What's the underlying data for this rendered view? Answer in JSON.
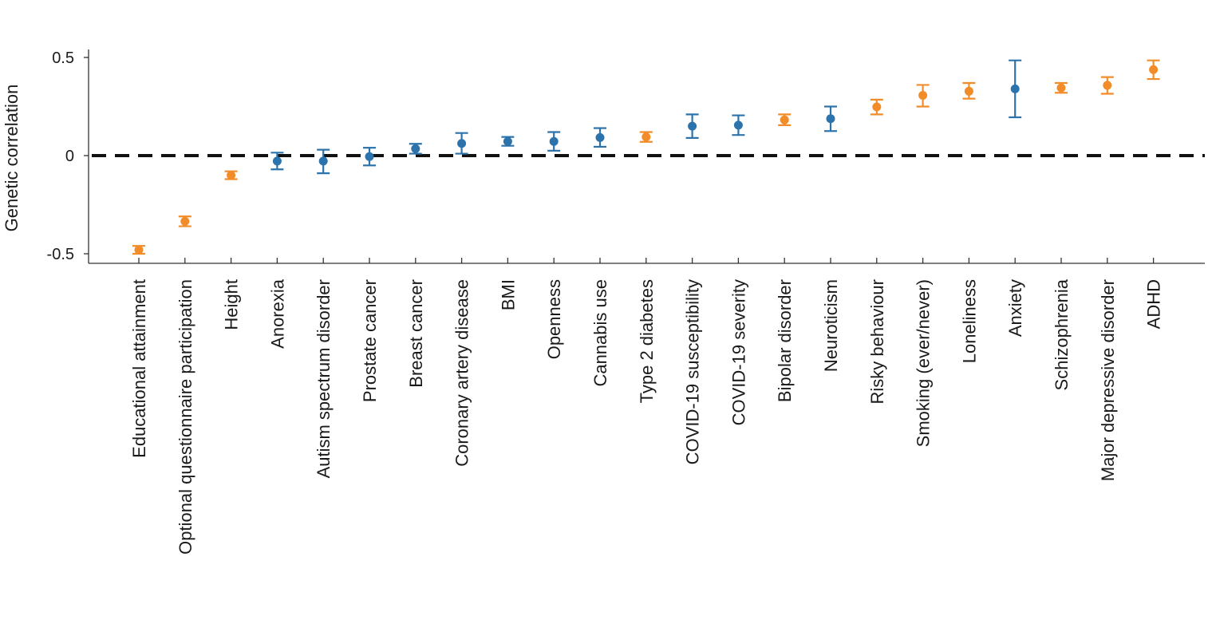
{
  "chart_data": {
    "type": "scatter",
    "ylabel": "Genetic correlation",
    "xlabel": "",
    "ylim": [
      -0.55,
      0.5
    ],
    "yticks": [
      -0.5,
      0,
      0.5
    ],
    "ytick_labels": [
      "-0.5",
      "0",
      "0.5"
    ],
    "reference_line": 0,
    "grid": false,
    "colors": {
      "orange": "#f28c28",
      "blue": "#2c73ab",
      "zero_line": "#111111",
      "axis": "#333333"
    },
    "categories": [
      "Educational attainment",
      "Optional questionnaire participation",
      "Height",
      "Anorexia",
      "Autism spectrum disorder",
      "Prostate cancer",
      "Breast cancer",
      "Coronary artery disease",
      "BMI",
      "Openness",
      "Cannabis use",
      "Type 2 diabetes",
      "COVID-19 susceptibility",
      "COVID-19 severity",
      "Bipolar disorder",
      "Neuroticism",
      "Risky behaviour",
      "Smoking (ever/never)",
      "Loneliness",
      "Anxiety",
      "Schizophrenia",
      "Major depressive disorder",
      "ADHD"
    ],
    "points": [
      {
        "value": -0.48,
        "lower": -0.5,
        "upper": -0.46,
        "color": "orange"
      },
      {
        "value": -0.335,
        "lower": -0.36,
        "upper": -0.31,
        "color": "orange"
      },
      {
        "value": -0.1,
        "lower": -0.12,
        "upper": -0.08,
        "color": "orange"
      },
      {
        "value": -0.028,
        "lower": -0.07,
        "upper": 0.015,
        "color": "blue"
      },
      {
        "value": -0.028,
        "lower": -0.09,
        "upper": 0.03,
        "color": "blue"
      },
      {
        "value": -0.005,
        "lower": -0.05,
        "upper": 0.04,
        "color": "blue"
      },
      {
        "value": 0.035,
        "lower": 0.01,
        "upper": 0.06,
        "color": "blue"
      },
      {
        "value": 0.062,
        "lower": 0.01,
        "upper": 0.115,
        "color": "blue"
      },
      {
        "value": 0.072,
        "lower": 0.05,
        "upper": 0.095,
        "color": "blue"
      },
      {
        "value": 0.072,
        "lower": 0.025,
        "upper": 0.12,
        "color": "blue"
      },
      {
        "value": 0.092,
        "lower": 0.045,
        "upper": 0.14,
        "color": "blue"
      },
      {
        "value": 0.095,
        "lower": 0.07,
        "upper": 0.12,
        "color": "orange"
      },
      {
        "value": 0.15,
        "lower": 0.09,
        "upper": 0.21,
        "color": "blue"
      },
      {
        "value": 0.155,
        "lower": 0.105,
        "upper": 0.205,
        "color": "blue"
      },
      {
        "value": 0.182,
        "lower": 0.155,
        "upper": 0.21,
        "color": "orange"
      },
      {
        "value": 0.188,
        "lower": 0.125,
        "upper": 0.25,
        "color": "blue"
      },
      {
        "value": 0.248,
        "lower": 0.21,
        "upper": 0.285,
        "color": "orange"
      },
      {
        "value": 0.307,
        "lower": 0.25,
        "upper": 0.36,
        "color": "orange"
      },
      {
        "value": 0.328,
        "lower": 0.29,
        "upper": 0.37,
        "color": "orange"
      },
      {
        "value": 0.34,
        "lower": 0.195,
        "upper": 0.485,
        "color": "blue"
      },
      {
        "value": 0.345,
        "lower": 0.32,
        "upper": 0.37,
        "color": "orange"
      },
      {
        "value": 0.358,
        "lower": 0.315,
        "upper": 0.4,
        "color": "orange"
      },
      {
        "value": 0.438,
        "lower": 0.39,
        "upper": 0.485,
        "color": "orange"
      }
    ]
  }
}
